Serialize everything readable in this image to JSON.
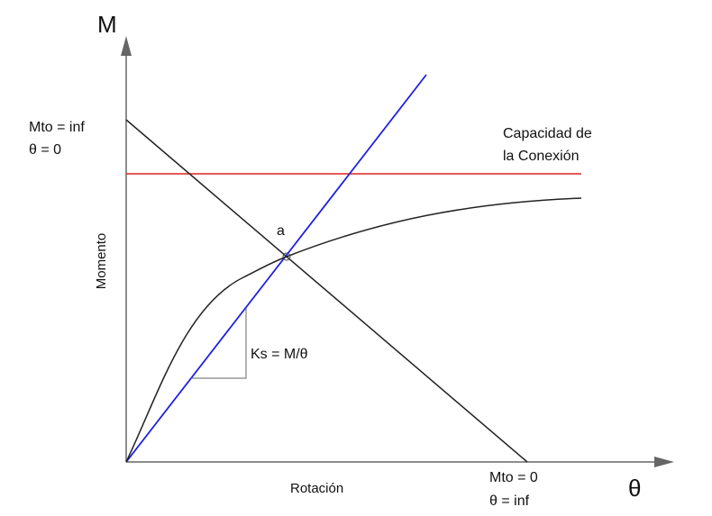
{
  "axes": {
    "y_symbol": "M",
    "x_symbol": "θ",
    "y_label": "Momento",
    "x_label": "Rotación"
  },
  "annotations": {
    "top_left": [
      "Mto = inf",
      "θ = 0"
    ],
    "capacity": [
      "Capacidad de",
      "la Conexión"
    ],
    "point": "a",
    "stiffness": "Ks = M/θ",
    "bottom_right": [
      "Mto = 0",
      "θ = inf"
    ]
  }
}
